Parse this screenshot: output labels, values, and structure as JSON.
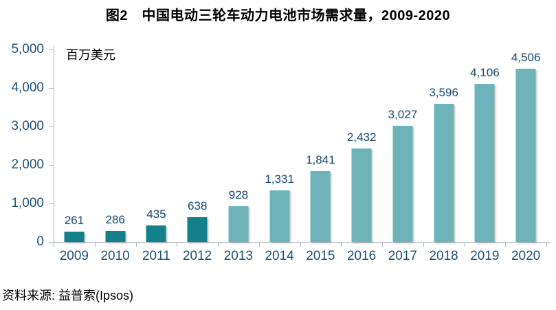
{
  "title": "图2　中国电动三轮车动力电池市场需求量，2009-2020",
  "source": "资料来源: 益普索(Ipsos)",
  "chart_data": {
    "type": "bar",
    "title": "图2　中国电动三轮车动力电池市场需求量，2009-2020",
    "unit_label": "百万美元",
    "categories": [
      "2009",
      "2010",
      "2011",
      "2012",
      "2013",
      "2014",
      "2015",
      "2016",
      "2017",
      "2018",
      "2019",
      "2020"
    ],
    "values": [
      261,
      286,
      435,
      638,
      928,
      1331,
      1841,
      2432,
      3027,
      3596,
      4106,
      4506
    ],
    "value_labels": [
      "261",
      "286",
      "435",
      "638",
      "928",
      "1,331",
      "1,841",
      "2,432",
      "3,027",
      "3,596",
      "4,106",
      "4,506"
    ],
    "bar_colors": [
      "#14808c",
      "#14808c",
      "#14808c",
      "#14808c",
      "#6db3b9",
      "#6db3b9",
      "#6db3b9",
      "#6db3b9",
      "#6db3b9",
      "#6db3b9",
      "#6db3b9",
      "#6db3b9"
    ],
    "xlabel": "",
    "ylabel": "百万美元",
    "ylim": [
      0,
      5000
    ],
    "y_ticks": [
      0,
      1000,
      2000,
      3000,
      4000,
      5000
    ],
    "y_tick_labels": [
      "0",
      "1,000",
      "2,000",
      "3,000",
      "4,000",
      "5,000"
    ],
    "grid": false,
    "legend_position": "none",
    "colors": {
      "dark_teal": "#14808c",
      "light_teal": "#6db3b9",
      "label_text": "#1f5078",
      "axis_line": "#aeb8bf",
      "title_text": "#000000"
    }
  }
}
